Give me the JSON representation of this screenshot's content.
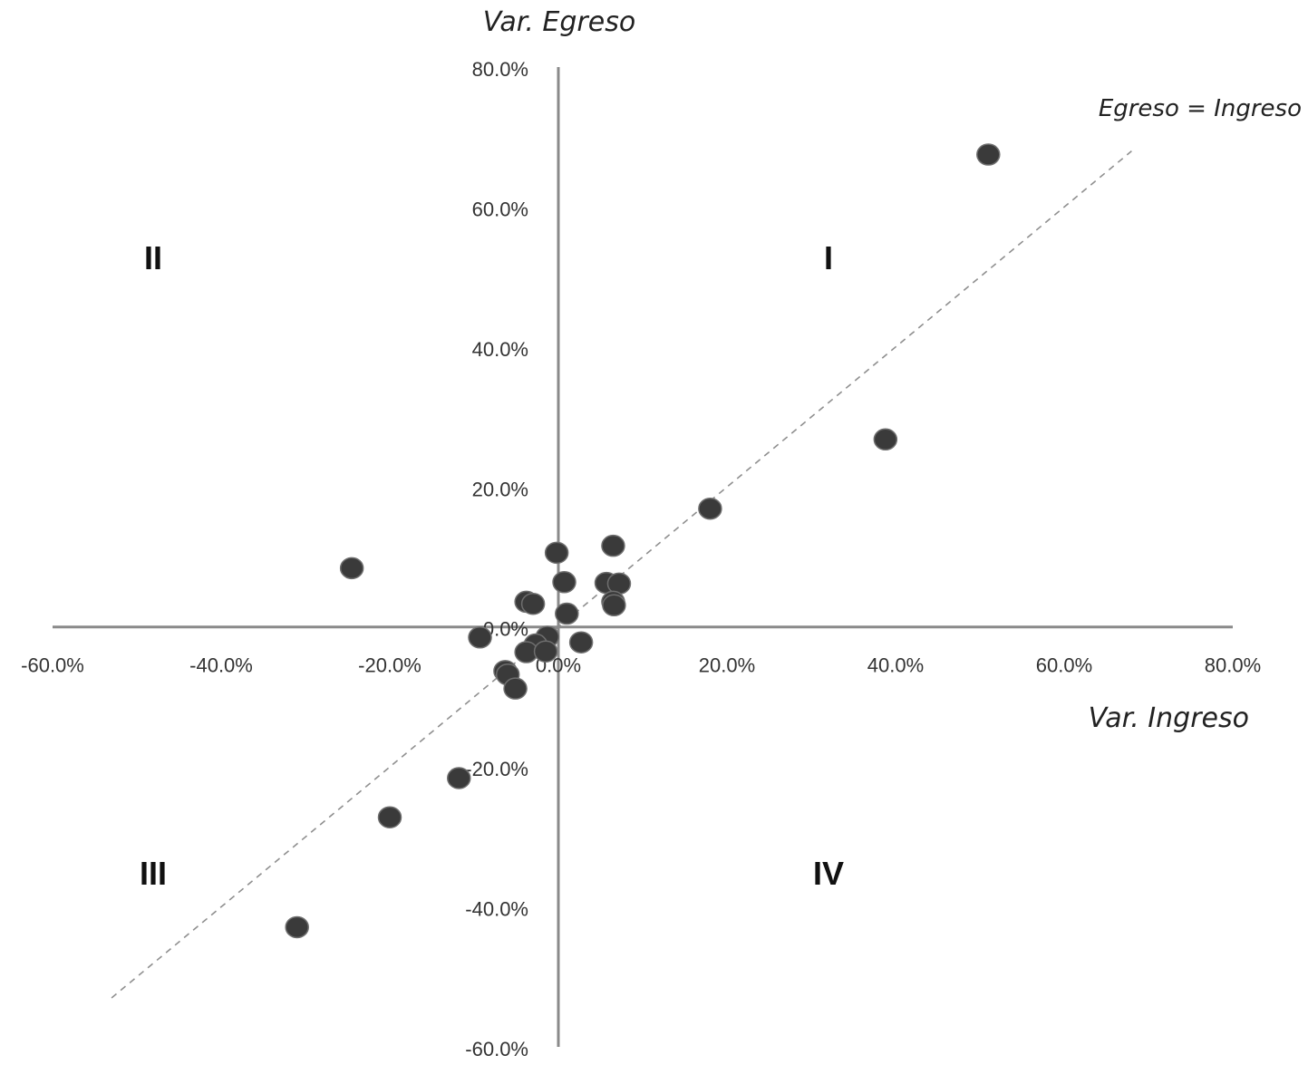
{
  "chart_data": {
    "type": "scatter",
    "xlabel": "Var. Ingreso",
    "ylabel": "Var. Egreso",
    "xlim": [
      -60,
      80
    ],
    "ylim": [
      -60,
      80
    ],
    "x_ticks": [
      "-60.0%",
      "-40.0%",
      "-20.0%",
      "0.0%",
      "20.0%",
      "40.0%",
      "60.0%",
      "80.0%"
    ],
    "y_ticks": [
      "-60.0%",
      "-40.0%",
      "-20.0%",
      "0.0%",
      "20.0%",
      "40.0%",
      "60.0%",
      "80.0%"
    ],
    "reference_line": {
      "label": "Egreso = Ingreso",
      "style": "dashed",
      "x_range": [
        -53,
        68
      ]
    },
    "quadrant_labels": [
      "I",
      "II",
      "III",
      "IV"
    ],
    "grid": false,
    "points": [
      {
        "x": 51.0,
        "y": 67.5
      },
      {
        "x": 38.8,
        "y": 26.8
      },
      {
        "x": 18.0,
        "y": 16.9
      },
      {
        "x": -24.5,
        "y": 8.4
      },
      {
        "x": -0.2,
        "y": 10.6
      },
      {
        "x": 6.5,
        "y": 11.6
      },
      {
        "x": 0.7,
        "y": 6.4
      },
      {
        "x": 5.7,
        "y": 6.3
      },
      {
        "x": 7.2,
        "y": 6.2
      },
      {
        "x": 6.5,
        "y": 3.6
      },
      {
        "x": 6.6,
        "y": 3.1
      },
      {
        "x": 1.0,
        "y": 1.9
      },
      {
        "x": -3.8,
        "y": 3.6
      },
      {
        "x": -3.0,
        "y": 3.3
      },
      {
        "x": -9.3,
        "y": -1.5
      },
      {
        "x": -1.3,
        "y": -1.4
      },
      {
        "x": -2.7,
        "y": -2.5
      },
      {
        "x": -3.8,
        "y": -3.6
      },
      {
        "x": -1.5,
        "y": -3.5
      },
      {
        "x": 2.7,
        "y": -2.2
      },
      {
        "x": -6.3,
        "y": -6.3
      },
      {
        "x": -6.0,
        "y": -6.8
      },
      {
        "x": -5.1,
        "y": -8.8
      },
      {
        "x": -11.8,
        "y": -21.6
      },
      {
        "x": -20.0,
        "y": -27.2
      },
      {
        "x": -31.0,
        "y": -42.9
      }
    ]
  }
}
